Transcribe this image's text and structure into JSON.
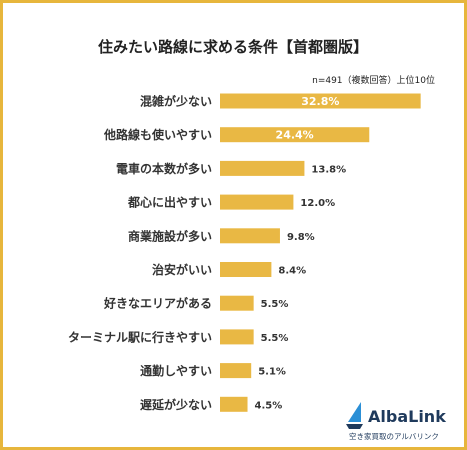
{
  "chart_data": {
    "type": "bar",
    "orientation": "horizontal",
    "title": "住みたい路線に求める条件【首都圏版】",
    "note": "n=491（複数回答）上位10位",
    "categories": [
      "混雑が少ない",
      "他路線も使いやすい",
      "電車の本数が多い",
      "都心に出やすい",
      "商業施設が多い",
      "治安がいい",
      "好きなエリアがある",
      "ターミナル駅に行きやすい",
      "通勤しやすい",
      "遅延が少ない"
    ],
    "values": [
      32.8,
      24.4,
      13.8,
      12.0,
      9.8,
      8.4,
      5.5,
      5.5,
      5.1,
      4.5
    ],
    "value_labels": [
      "32.8%",
      "24.4%",
      "13.8%",
      "12.0%",
      "9.8%",
      "8.4%",
      "5.5%",
      "5.5%",
      "5.1%",
      "4.5%"
    ],
    "unit": "%",
    "xlim": [
      0,
      34
    ],
    "grid": false,
    "legend": "none",
    "bar_color": "#e9b844"
  },
  "logo": {
    "name": "AlbaLink",
    "subtitle": "空き家買取のアルバリンク",
    "icon": "sail-icon",
    "colors": [
      "#1f3a5c",
      "#2b8fd6"
    ]
  },
  "colors": {
    "border": "#e7b63c",
    "text": "#333333"
  }
}
